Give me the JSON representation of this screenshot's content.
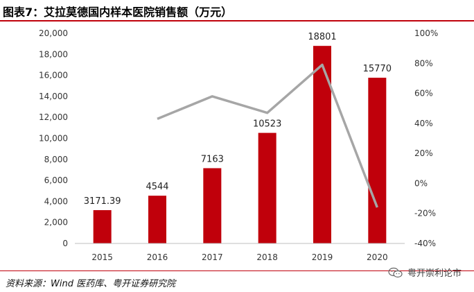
{
  "title": "图表7：艾拉莫德国内样本医院销售额（万元）",
  "source": "资料来源：Wind 医药库、粤开证券研究院",
  "watermark": {
    "text": "粤开崇利论市",
    "icon": "wechat-icon"
  },
  "colors": {
    "bar": "#c0000b",
    "line": "#a6a6a6",
    "accent": "#c0000b"
  },
  "chart_data": {
    "type": "bar",
    "categories": [
      "2015",
      "2016",
      "2017",
      "2018",
      "2019",
      "2020"
    ],
    "series": [
      {
        "values": [
          3171.39,
          4544,
          7163,
          10523,
          18801,
          15770
        ],
        "axis": "left",
        "type": "bar"
      },
      {
        "values": [
          null,
          43,
          58,
          47,
          79,
          -16
        ],
        "axis": "right",
        "type": "line"
      }
    ],
    "data_labels": [
      "3171.39",
      "4544",
      "7163",
      "10523",
      "18801",
      "15770"
    ],
    "ylim_left": [
      0,
      20000
    ],
    "ylim_right": [
      -40,
      100
    ],
    "left_ticks": [
      "0",
      "2,000",
      "4,000",
      "6,000",
      "8,000",
      "10,000",
      "12,000",
      "14,000",
      "16,000",
      "18,000",
      "20,000"
    ],
    "right_ticks": [
      "-40%",
      "-20%",
      "0%",
      "20%",
      "40%",
      "60%",
      "80%",
      "100%"
    ],
    "grid": false,
    "legend": "none"
  }
}
